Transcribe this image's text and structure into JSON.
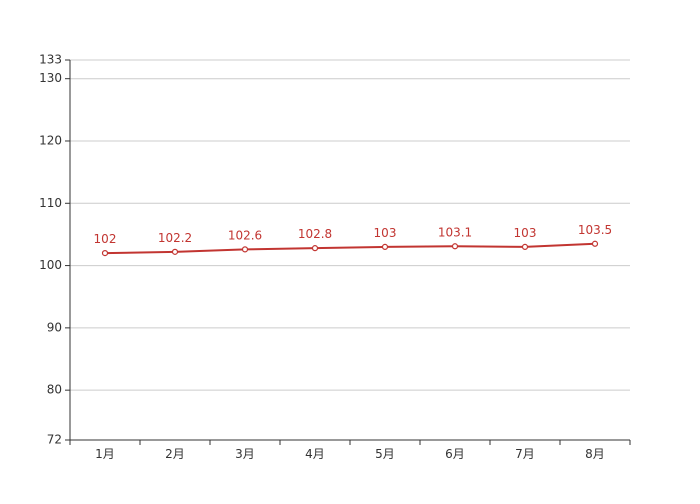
{
  "chart_data": {
    "type": "line",
    "title": "",
    "xlabel": "",
    "ylabel": "",
    "categories": [
      "1月",
      "2月",
      "3月",
      "4月",
      "5月",
      "6月",
      "7月",
      "8月"
    ],
    "series": [
      {
        "values": [
          102,
          102.2,
          102.6,
          102.8,
          103,
          103.1,
          103,
          103.5
        ],
        "labels": [
          "102",
          "102.2",
          "102.6",
          "102.8",
          "103",
          "103.1",
          "103",
          "103.5"
        ]
      }
    ],
    "ylim": [
      72,
      133
    ],
    "yticks": [
      72,
      80,
      90,
      100,
      110,
      120,
      130,
      133
    ],
    "grid": true,
    "legend": "none",
    "colors": {
      "line": "#c23531",
      "label": "#c23531",
      "grid": "#cccccc",
      "axis": "#333333",
      "tick_text": "#333333"
    }
  }
}
